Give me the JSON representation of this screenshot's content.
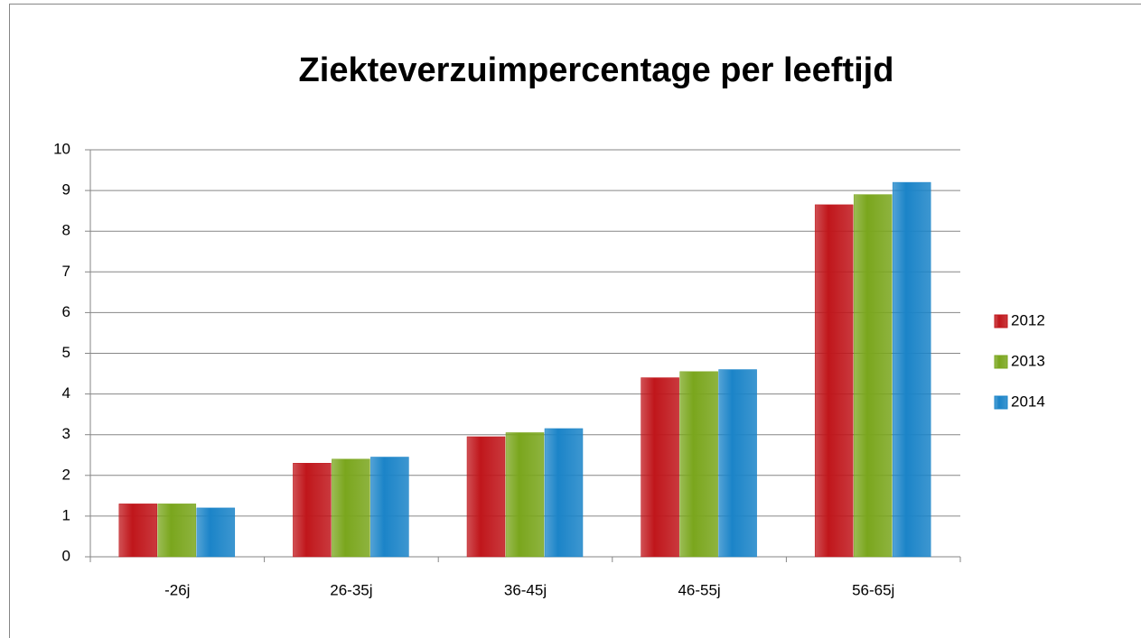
{
  "chart_data": {
    "type": "bar",
    "title": "Ziekteverzuimpercentage per leeftijd",
    "categories": [
      "-26j",
      "26-35j",
      "36-45j",
      "46-55j",
      "56-65j"
    ],
    "series": [
      {
        "name": "2012",
        "color": "#c0161b",
        "values": [
          1.3,
          2.3,
          2.95,
          4.4,
          8.65
        ]
      },
      {
        "name": "2013",
        "color": "#7aa61d",
        "values": [
          1.3,
          2.4,
          3.05,
          4.55,
          8.9
        ]
      },
      {
        "name": "2014",
        "color": "#1b84c8",
        "values": [
          1.2,
          2.45,
          3.15,
          4.6,
          9.2
        ]
      }
    ],
    "ylim": [
      0,
      10
    ],
    "yticks": [
      0,
      1,
      2,
      3,
      4,
      5,
      6,
      7,
      8,
      9,
      10
    ],
    "grid": true,
    "legend": "right"
  }
}
